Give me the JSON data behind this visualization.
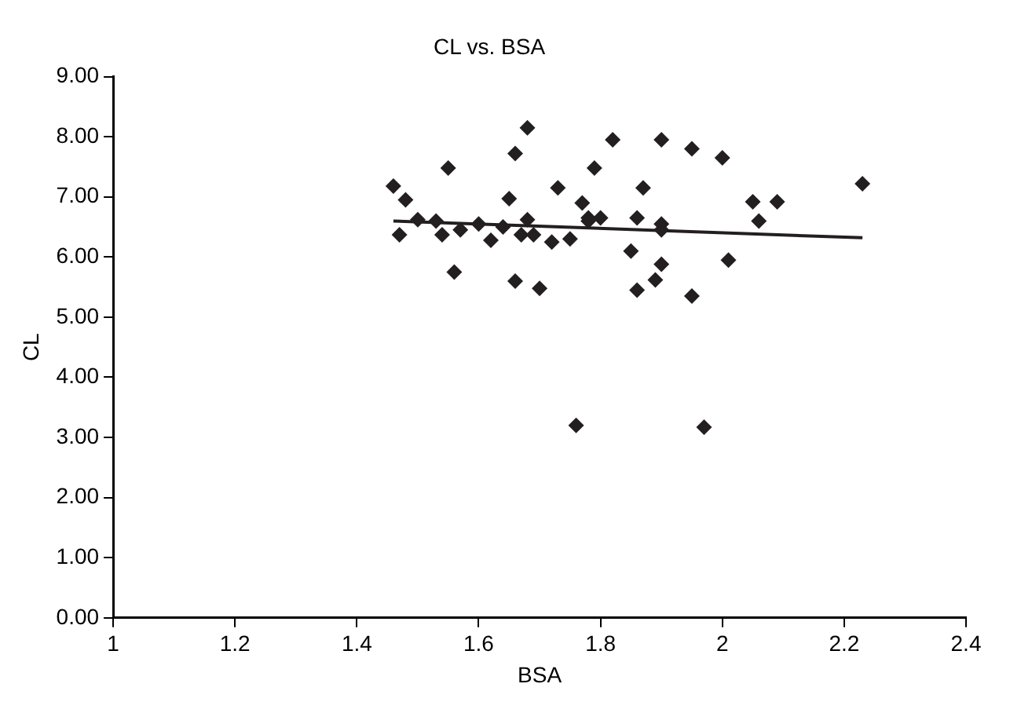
{
  "chart_data": {
    "type": "scatter",
    "title": "CL vs. BSA",
    "xlabel": "BSA",
    "ylabel": "CL",
    "xlim": [
      1,
      2.4
    ],
    "xticks": [
      1,
      1.2,
      1.4,
      1.6,
      1.8,
      2,
      2.2,
      2.4
    ],
    "ylim": [
      0,
      9
    ],
    "yticks": [
      {
        "value": 0,
        "label": "0.00"
      },
      {
        "value": 1,
        "label": "1.00"
      },
      {
        "value": 2,
        "label": "2.00"
      },
      {
        "value": 3,
        "label": "3.00"
      },
      {
        "value": 4,
        "label": "4.00"
      },
      {
        "value": 5,
        "label": "5.00"
      },
      {
        "value": 6,
        "label": "6.00"
      },
      {
        "value": 7,
        "label": "7.00"
      },
      {
        "value": 8,
        "label": "8.00"
      },
      {
        "value": 9,
        "label": "9.00"
      }
    ],
    "grid": false,
    "legend": false,
    "marker": "diamond",
    "series": [
      {
        "color": "#231f20",
        "x": [
          1.46,
          1.47,
          1.48,
          1.5,
          1.53,
          1.54,
          1.55,
          1.56,
          1.57,
          1.6,
          1.62,
          1.64,
          1.65,
          1.66,
          1.66,
          1.67,
          1.68,
          1.68,
          1.69,
          1.7,
          1.72,
          1.73,
          1.75,
          1.76,
          1.77,
          1.78,
          1.78,
          1.79,
          1.8,
          1.82,
          1.85,
          1.86,
          1.86,
          1.87,
          1.89,
          1.9,
          1.9,
          1.9,
          1.9,
          1.95,
          1.95,
          1.97,
          2.0,
          2.01,
          2.05,
          2.06,
          2.09,
          2.23
        ],
        "values": [
          7.18,
          6.37,
          6.95,
          6.62,
          6.6,
          6.37,
          7.48,
          5.75,
          6.45,
          6.55,
          6.28,
          6.5,
          6.97,
          7.72,
          5.6,
          6.37,
          8.15,
          6.62,
          6.37,
          5.48,
          6.25,
          7.15,
          6.3,
          3.2,
          6.9,
          6.65,
          6.6,
          7.48,
          6.65,
          7.95,
          6.1,
          6.65,
          5.45,
          7.15,
          5.62,
          7.95,
          6.55,
          6.45,
          5.88,
          7.8,
          5.35,
          3.17,
          7.65,
          5.95,
          6.92,
          6.6,
          6.92,
          7.22
        ]
      },
      {
        "type": "line",
        "color": "#231f20",
        "x": [
          1.46,
          2.23
        ],
        "values": [
          6.6,
          6.32
        ],
        "marker": "none",
        "line_style": "solid"
      }
    ]
  }
}
